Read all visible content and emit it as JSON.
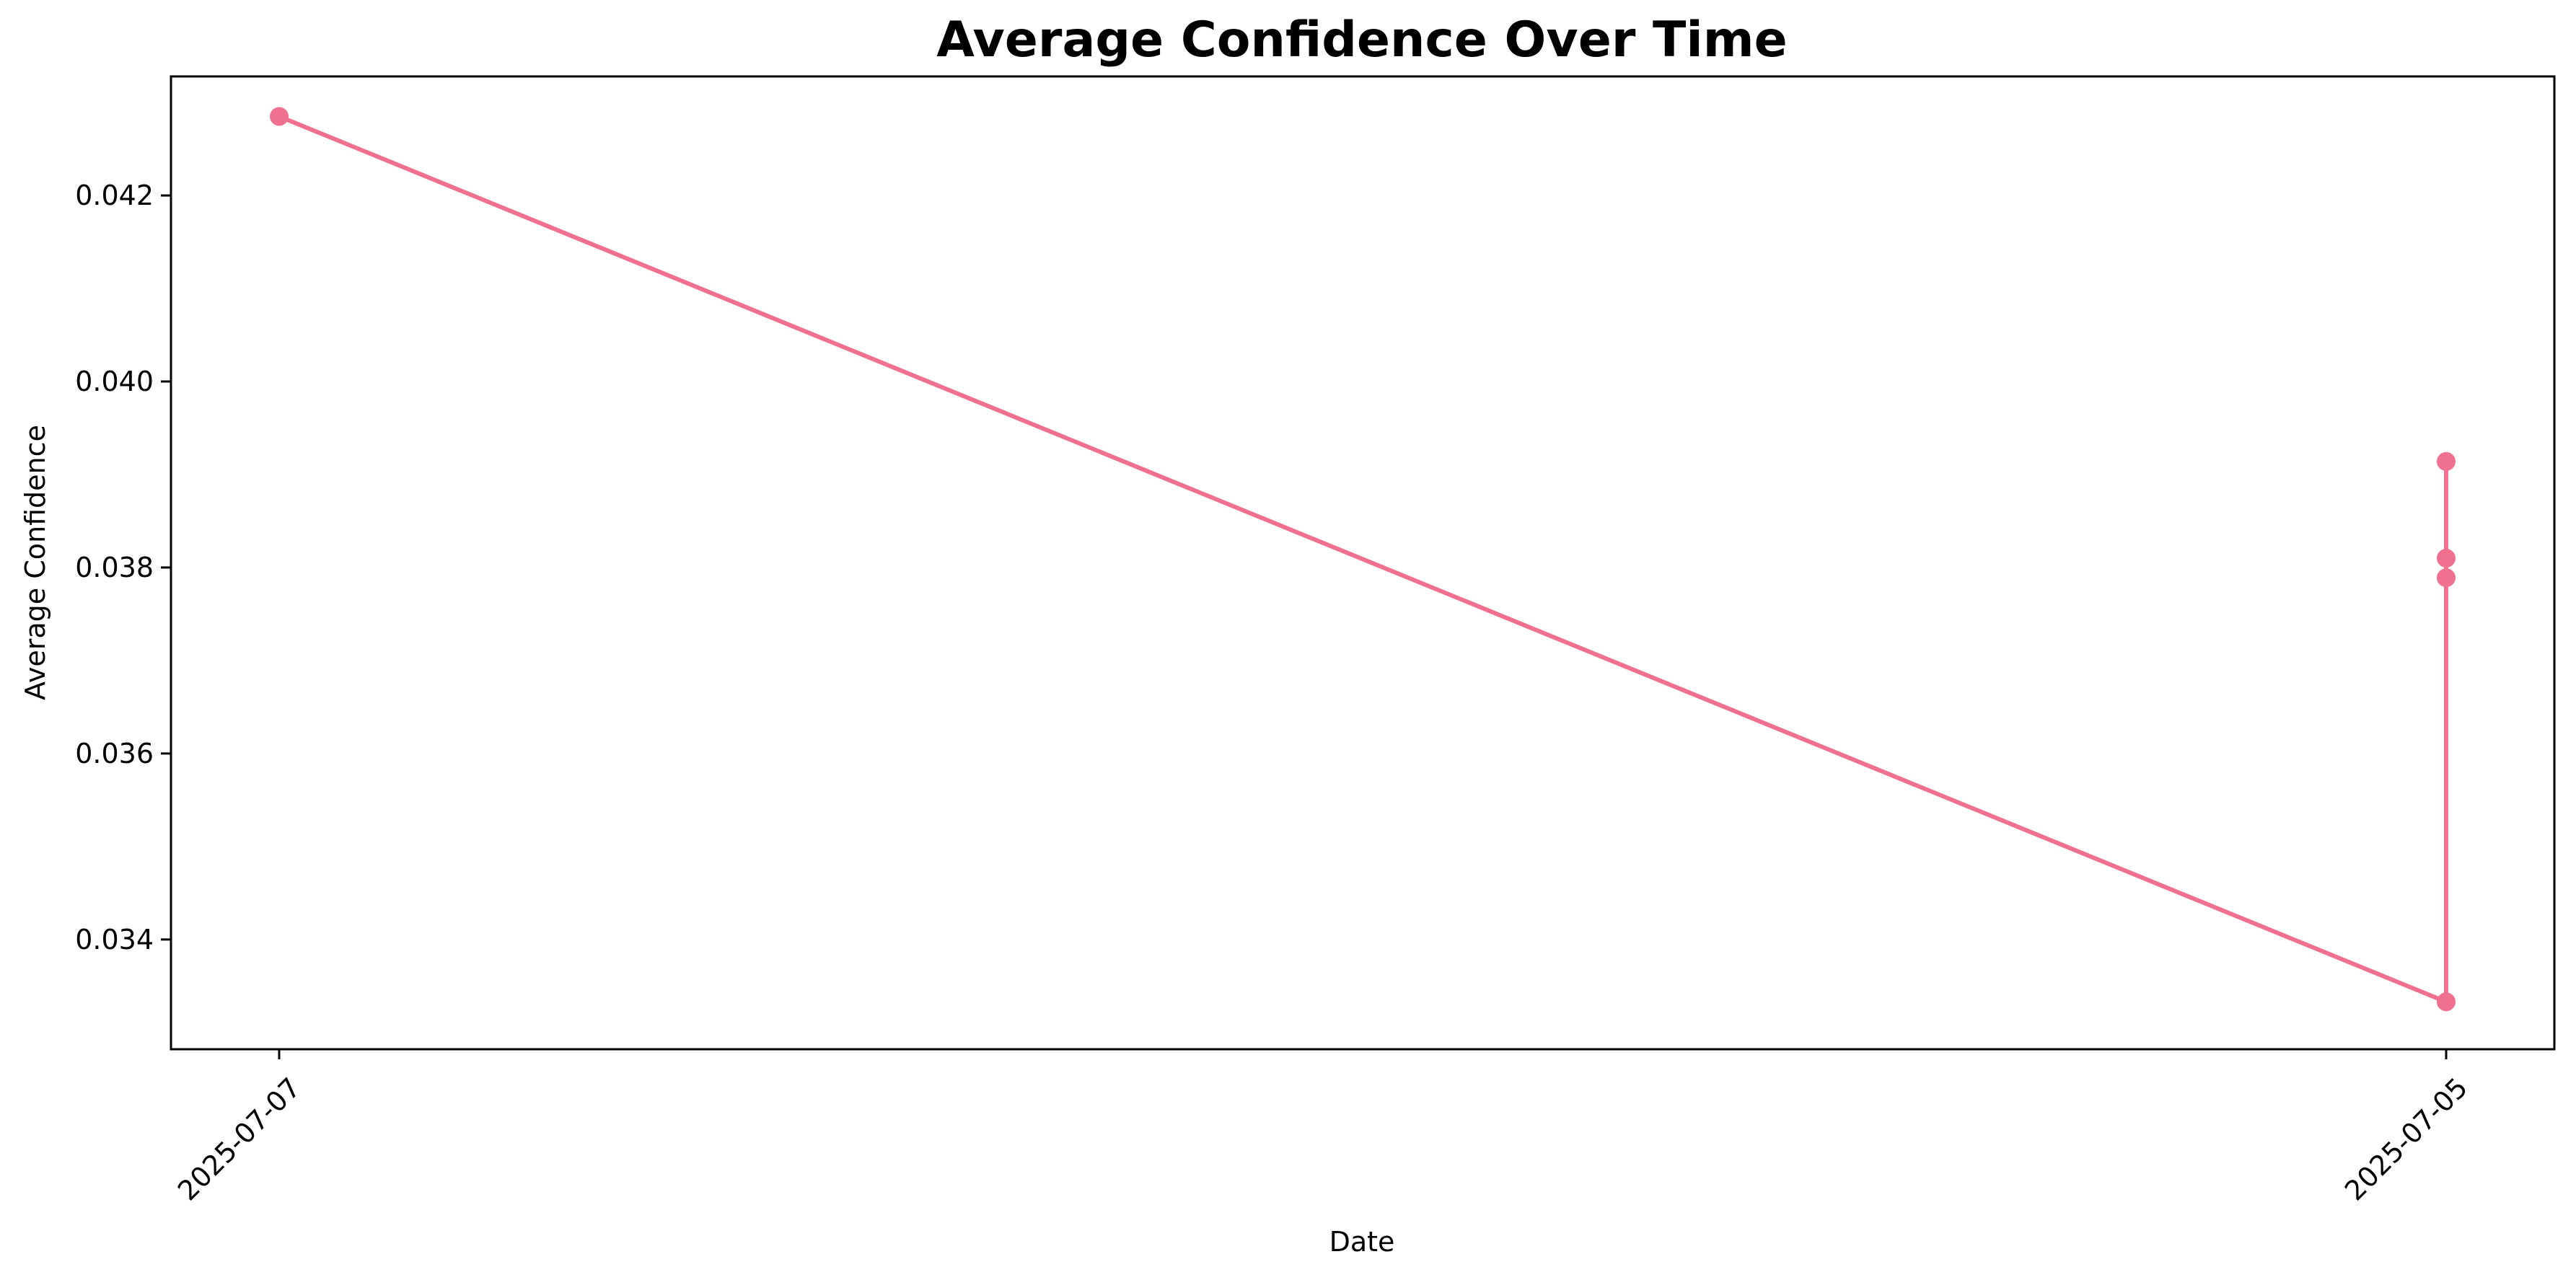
{
  "chart_data": {
    "type": "line",
    "title": "Average Confidence Over Time",
    "xlabel": "Date",
    "ylabel": "Average Confidence",
    "x_tick_labels": [
      "2025-07-07",
      "2025-07-05"
    ],
    "y_ticks": [
      "0.034",
      "0.036",
      "0.038",
      "0.040",
      "0.042"
    ],
    "ylim": [
      0.03282,
      0.04328
    ],
    "grid": false,
    "series": [
      {
        "color": "#f07090",
        "points": [
          {
            "x": "2025-07-07",
            "y": 0.04285
          },
          {
            "x": "2025-07-05",
            "y": 0.03333
          },
          {
            "x": "2025-07-05",
            "y": 0.03914
          },
          {
            "x": "2025-07-05",
            "y": 0.0381
          },
          {
            "x": "2025-07-05",
            "y": 0.03789
          }
        ]
      }
    ]
  }
}
